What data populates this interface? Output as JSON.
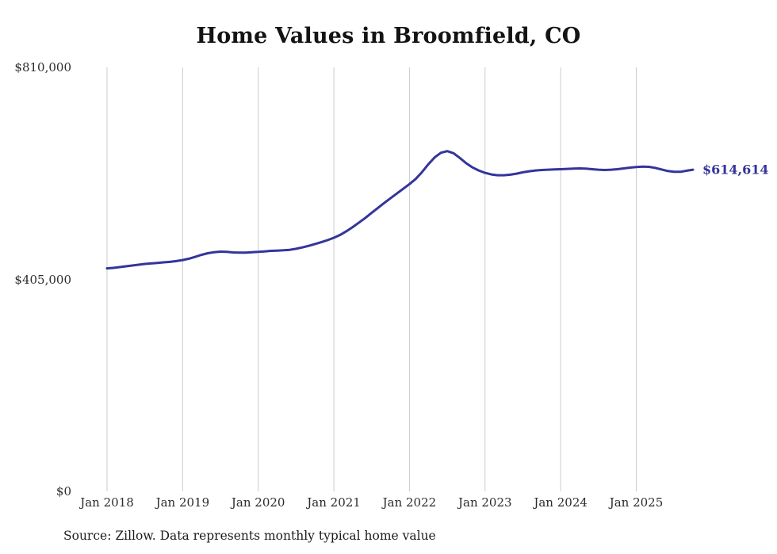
{
  "page": {
    "title": "Home Values in Broomfield, CO",
    "source": "Source: Zillow. Data represents monthly typical home value"
  },
  "chart_data": {
    "type": "line",
    "title": "Home Values in Broomfield, CO",
    "ylabel": "",
    "xlabel": "",
    "ylim": [
      0,
      810000
    ],
    "grid": "vertical-only",
    "line_color": "#34349c",
    "grid_color": "#cccccc",
    "end_label": "$614,614",
    "y_ticks": [
      {
        "label": "$810,000",
        "value": 810000
      },
      {
        "label": "$405,000",
        "value": 405000
      },
      {
        "label": "$0",
        "value": 0
      }
    ],
    "x_tick_labels": [
      "Jan 2018",
      "Jan 2019",
      "Jan 2020",
      "Jan 2021",
      "Jan 2022",
      "Jan 2023",
      "Jan 2024",
      "Jan 2025"
    ],
    "months": [
      "2018-01",
      "2018-02",
      "2018-03",
      "2018-04",
      "2018-05",
      "2018-06",
      "2018-07",
      "2018-08",
      "2018-09",
      "2018-10",
      "2018-11",
      "2018-12",
      "2019-01",
      "2019-02",
      "2019-03",
      "2019-04",
      "2019-05",
      "2019-06",
      "2019-07",
      "2019-08",
      "2019-09",
      "2019-10",
      "2019-11",
      "2019-12",
      "2020-01",
      "2020-02",
      "2020-03",
      "2020-04",
      "2020-05",
      "2020-06",
      "2020-07",
      "2020-08",
      "2020-09",
      "2020-10",
      "2020-11",
      "2020-12",
      "2021-01",
      "2021-02",
      "2021-03",
      "2021-04",
      "2021-05",
      "2021-06",
      "2021-07",
      "2021-08",
      "2021-09",
      "2021-10",
      "2021-11",
      "2021-12",
      "2022-01",
      "2022-02",
      "2022-03",
      "2022-04",
      "2022-05",
      "2022-06",
      "2022-07",
      "2022-08",
      "2022-09",
      "2022-10",
      "2022-11",
      "2022-12",
      "2023-01",
      "2023-02",
      "2023-03",
      "2023-04",
      "2023-05",
      "2023-06",
      "2023-07",
      "2023-08",
      "2023-09",
      "2023-10",
      "2023-11",
      "2023-12",
      "2024-01",
      "2024-02",
      "2024-03",
      "2024-04",
      "2024-05",
      "2024-06",
      "2024-07",
      "2024-08",
      "2024-09",
      "2024-10",
      "2024-11",
      "2024-12",
      "2025-01",
      "2025-02",
      "2025-03",
      "2025-04",
      "2025-05",
      "2025-06",
      "2025-07",
      "2025-08",
      "2025-09",
      "2025-10"
    ],
    "values": [
      426000,
      427000,
      428500,
      430000,
      431500,
      433000,
      434500,
      435500,
      436500,
      437500,
      438500,
      440000,
      442000,
      444500,
      448000,
      452000,
      455000,
      457000,
      458000,
      457500,
      456500,
      456000,
      456000,
      457000,
      457500,
      458500,
      459500,
      460000,
      460500,
      461500,
      463500,
      466000,
      469000,
      472500,
      476000,
      480000,
      484500,
      490000,
      497000,
      505000,
      513500,
      522500,
      532000,
      541500,
      551000,
      560000,
      569000,
      578000,
      587000,
      597000,
      610000,
      625000,
      638000,
      647000,
      650000,
      646000,
      637000,
      627000,
      619000,
      613000,
      608500,
      605500,
      604000,
      604000,
      605000,
      607000,
      609500,
      611500,
      613000,
      614000,
      614500,
      615000,
      615500,
      616000,
      616500,
      617000,
      616500,
      615500,
      614500,
      614000,
      614500,
      615500,
      617000,
      618500,
      619500,
      620500,
      620000,
      618000,
      615000,
      612000,
      610500,
      610500,
      612500,
      614614
    ]
  }
}
